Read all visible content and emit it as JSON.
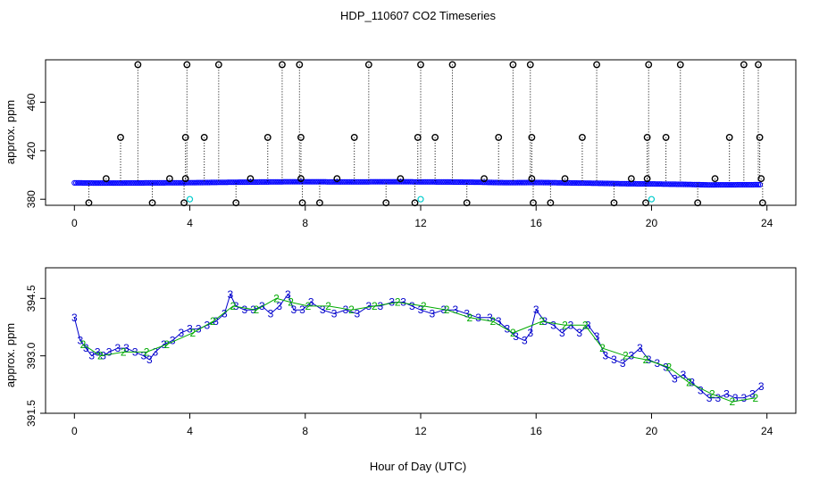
{
  "chart_data": [
    {
      "type": "scatter",
      "title": "HDP_110607  CO2 Timeseries",
      "xlabel": "",
      "ylabel": "approx. ppm",
      "xlim": [
        -1,
        25
      ],
      "ylim": [
        375,
        495
      ],
      "xticks": [
        0,
        4,
        8,
        12,
        16,
        20,
        24
      ],
      "xtick_labels": [
        "0",
        "4",
        "8",
        "12",
        "16",
        "20",
        "24"
      ],
      "yticks": [
        380,
        420,
        460
      ],
      "ytick_labels": [
        "380",
        "420",
        "460"
      ],
      "baseline": {
        "color": "#0000ff",
        "points": [
          [
            0.0,
            393.5
          ],
          [
            1.0,
            393.3
          ],
          [
            2.0,
            393.4
          ],
          [
            3.0,
            393.5
          ],
          [
            4.0,
            393.6
          ],
          [
            5.0,
            393.9
          ],
          [
            6.0,
            394.1
          ],
          [
            7.0,
            394.3
          ],
          [
            8.0,
            394.4
          ],
          [
            9.0,
            394.3
          ],
          [
            10.0,
            394.3
          ],
          [
            11.0,
            394.4
          ],
          [
            12.0,
            394.3
          ],
          [
            13.0,
            394.2
          ],
          [
            14.0,
            394.0
          ],
          [
            15.0,
            393.6
          ],
          [
            16.0,
            393.8
          ],
          [
            17.0,
            393.5
          ],
          [
            18.0,
            393.2
          ],
          [
            19.0,
            392.8
          ],
          [
            20.0,
            392.6
          ],
          [
            21.0,
            392.3
          ],
          [
            22.0,
            391.8
          ],
          [
            23.0,
            391.9
          ],
          [
            23.8,
            392.0
          ]
        ]
      },
      "outliers": [
        {
          "x": 0.5,
          "y": 377
        },
        {
          "x": 1.1,
          "y": 397
        },
        {
          "x": 1.6,
          "y": 431
        },
        {
          "x": 2.2,
          "y": 491
        },
        {
          "x": 2.7,
          "y": 377
        },
        {
          "x": 3.3,
          "y": 397
        },
        {
          "x": 3.8,
          "y": 377
        },
        {
          "x": 3.85,
          "y": 431
        },
        {
          "x": 3.9,
          "y": 491
        },
        {
          "x": 3.85,
          "y": 397
        },
        {
          "x": 4.5,
          "y": 431
        },
        {
          "x": 5.0,
          "y": 491
        },
        {
          "x": 5.6,
          "y": 377
        },
        {
          "x": 6.1,
          "y": 397
        },
        {
          "x": 6.7,
          "y": 431
        },
        {
          "x": 7.2,
          "y": 491
        },
        {
          "x": 7.8,
          "y": 491
        },
        {
          "x": 7.85,
          "y": 431
        },
        {
          "x": 7.9,
          "y": 377
        },
        {
          "x": 7.85,
          "y": 397
        },
        {
          "x": 8.5,
          "y": 377
        },
        {
          "x": 9.1,
          "y": 397
        },
        {
          "x": 9.7,
          "y": 431
        },
        {
          "x": 10.2,
          "y": 491
        },
        {
          "x": 10.8,
          "y": 377
        },
        {
          "x": 11.3,
          "y": 397
        },
        {
          "x": 11.8,
          "y": 377
        },
        {
          "x": 11.9,
          "y": 431
        },
        {
          "x": 12.0,
          "y": 491
        },
        {
          "x": 12.5,
          "y": 431
        },
        {
          "x": 13.1,
          "y": 491
        },
        {
          "x": 13.6,
          "y": 377
        },
        {
          "x": 14.2,
          "y": 397
        },
        {
          "x": 14.7,
          "y": 431
        },
        {
          "x": 15.2,
          "y": 491
        },
        {
          "x": 15.8,
          "y": 491
        },
        {
          "x": 15.85,
          "y": 431
        },
        {
          "x": 15.9,
          "y": 377
        },
        {
          "x": 15.85,
          "y": 397
        },
        {
          "x": 16.5,
          "y": 377
        },
        {
          "x": 17.0,
          "y": 397
        },
        {
          "x": 17.6,
          "y": 431
        },
        {
          "x": 18.1,
          "y": 491
        },
        {
          "x": 18.7,
          "y": 377
        },
        {
          "x": 19.3,
          "y": 397
        },
        {
          "x": 19.8,
          "y": 377
        },
        {
          "x": 19.85,
          "y": 431
        },
        {
          "x": 19.9,
          "y": 491
        },
        {
          "x": 19.85,
          "y": 397
        },
        {
          "x": 20.5,
          "y": 431
        },
        {
          "x": 21.0,
          "y": 491
        },
        {
          "x": 21.6,
          "y": 377
        },
        {
          "x": 22.2,
          "y": 397
        },
        {
          "x": 22.7,
          "y": 431
        },
        {
          "x": 23.2,
          "y": 491
        },
        {
          "x": 23.7,
          "y": 491
        },
        {
          "x": 23.75,
          "y": 431
        },
        {
          "x": 23.8,
          "y": 397
        },
        {
          "x": 23.85,
          "y": 377
        }
      ],
      "cyan_points": [
        {
          "x": 4.0,
          "y": 380
        },
        {
          "x": 12.0,
          "y": 380
        },
        {
          "x": 20.0,
          "y": 380
        }
      ]
    },
    {
      "type": "line",
      "title": "",
      "xlabel": "Hour of Day (UTC)",
      "ylabel": "approx. ppm",
      "xlim": [
        -1,
        25
      ],
      "ylim": [
        391.5,
        395.3
      ],
      "xticks": [
        0,
        4,
        8,
        12,
        16,
        20,
        24
      ],
      "xtick_labels": [
        "0",
        "4",
        "8",
        "12",
        "16",
        "20",
        "24"
      ],
      "yticks": [
        391.5,
        393.0,
        394.5
      ],
      "ytick_labels": [
        "391.5",
        "393.0",
        "394.5"
      ],
      "series": [
        {
          "name": "3",
          "color": "#0000cc",
          "marker": "3",
          "points": [
            [
              0.0,
              394.0
            ],
            [
              0.2,
              393.4
            ],
            [
              0.4,
              393.2
            ],
            [
              0.6,
              393.0
            ],
            [
              0.8,
              393.1
            ],
            [
              1.0,
              393.0
            ],
            [
              1.2,
              393.1
            ],
            [
              1.5,
              393.2
            ],
            [
              1.8,
              393.2
            ],
            [
              2.1,
              393.1
            ],
            [
              2.4,
              393.0
            ],
            [
              2.6,
              392.9
            ],
            [
              2.8,
              393.1
            ],
            [
              3.1,
              393.3
            ],
            [
              3.4,
              393.4
            ],
            [
              3.7,
              393.6
            ],
            [
              4.0,
              393.7
            ],
            [
              4.3,
              393.7
            ],
            [
              4.6,
              393.8
            ],
            [
              4.9,
              393.9
            ],
            [
              5.2,
              394.1
            ],
            [
              5.4,
              394.6
            ],
            [
              5.6,
              394.3
            ],
            [
              5.9,
              394.2
            ],
            [
              6.2,
              394.2
            ],
            [
              6.5,
              394.3
            ],
            [
              6.8,
              394.1
            ],
            [
              7.1,
              394.3
            ],
            [
              7.4,
              394.6
            ],
            [
              7.6,
              394.2
            ],
            [
              7.9,
              394.2
            ],
            [
              8.2,
              394.4
            ],
            [
              8.6,
              394.2
            ],
            [
              9.0,
              394.1
            ],
            [
              9.4,
              394.2
            ],
            [
              9.8,
              394.1
            ],
            [
              10.2,
              394.3
            ],
            [
              10.6,
              394.3
            ],
            [
              11.0,
              394.4
            ],
            [
              11.4,
              394.4
            ],
            [
              11.7,
              394.3
            ],
            [
              12.0,
              394.2
            ],
            [
              12.4,
              394.1
            ],
            [
              12.8,
              394.2
            ],
            [
              13.2,
              394.2
            ],
            [
              13.6,
              394.1
            ],
            [
              14.0,
              394.0
            ],
            [
              14.4,
              394.0
            ],
            [
              14.7,
              393.9
            ],
            [
              15.0,
              393.7
            ],
            [
              15.3,
              393.5
            ],
            [
              15.6,
              393.4
            ],
            [
              15.8,
              393.6
            ],
            [
              16.0,
              394.2
            ],
            [
              16.3,
              393.9
            ],
            [
              16.6,
              393.8
            ],
            [
              16.9,
              393.6
            ],
            [
              17.2,
              393.8
            ],
            [
              17.5,
              393.6
            ],
            [
              17.8,
              393.8
            ],
            [
              18.1,
              393.5
            ],
            [
              18.4,
              393.0
            ],
            [
              18.7,
              392.9
            ],
            [
              19.0,
              392.8
            ],
            [
              19.3,
              393.0
            ],
            [
              19.6,
              393.2
            ],
            [
              19.9,
              392.9
            ],
            [
              20.2,
              392.8
            ],
            [
              20.5,
              392.7
            ],
            [
              20.8,
              392.4
            ],
            [
              21.1,
              392.5
            ],
            [
              21.4,
              392.3
            ],
            [
              21.7,
              392.1
            ],
            [
              22.0,
              391.9
            ],
            [
              22.3,
              391.9
            ],
            [
              22.6,
              392.0
            ],
            [
              22.9,
              391.9
            ],
            [
              23.2,
              391.9
            ],
            [
              23.5,
              392.0
            ],
            [
              23.8,
              392.2
            ]
          ]
        },
        {
          "name": "2",
          "color": "#00aa00",
          "marker": "2",
          "points": [
            [
              0.3,
              393.3
            ],
            [
              0.9,
              393.0
            ],
            [
              1.7,
              393.1
            ],
            [
              2.5,
              393.1
            ],
            [
              3.2,
              393.3
            ],
            [
              4.1,
              393.6
            ],
            [
              4.8,
              393.9
            ],
            [
              5.5,
              394.3
            ],
            [
              6.3,
              394.2
            ],
            [
              7.0,
              394.5
            ],
            [
              7.5,
              394.4
            ],
            [
              8.1,
              394.3
            ],
            [
              8.8,
              394.3
            ],
            [
              9.6,
              394.2
            ],
            [
              10.4,
              394.3
            ],
            [
              11.2,
              394.4
            ],
            [
              12.1,
              394.3
            ],
            [
              12.9,
              394.2
            ],
            [
              13.7,
              394.0
            ],
            [
              14.5,
              393.9
            ],
            [
              15.2,
              393.6
            ],
            [
              16.2,
              393.9
            ],
            [
              17.0,
              393.8
            ],
            [
              17.7,
              393.8
            ],
            [
              18.3,
              393.2
            ],
            [
              19.1,
              393.0
            ],
            [
              19.8,
              392.9
            ],
            [
              20.6,
              392.7
            ],
            [
              21.3,
              392.3
            ],
            [
              22.1,
              392.0
            ],
            [
              22.8,
              391.8
            ],
            [
              23.6,
              391.9
            ]
          ]
        }
      ]
    }
  ]
}
